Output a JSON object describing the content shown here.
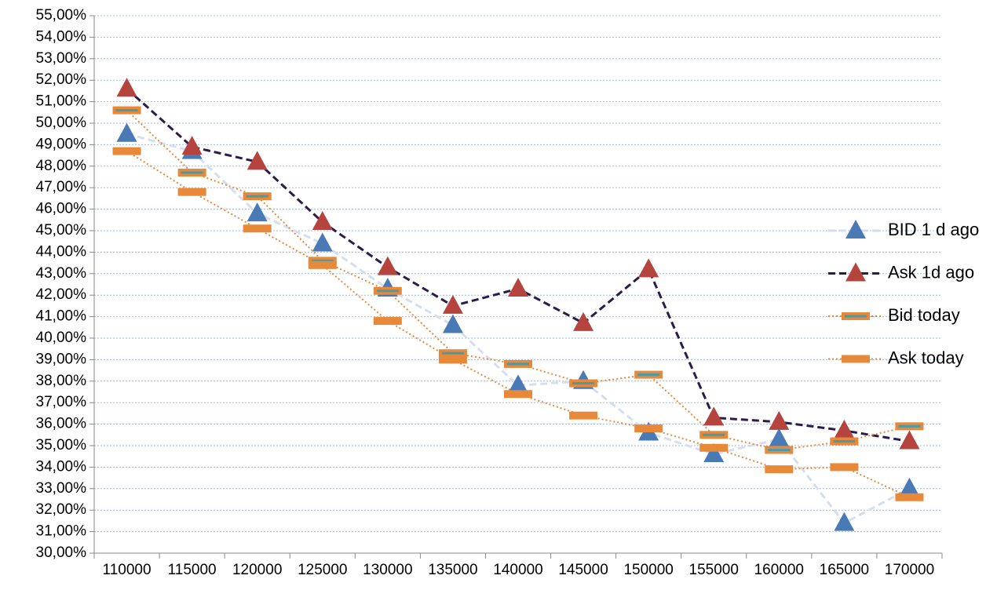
{
  "chart_data": {
    "type": "line",
    "categories": [
      "110000",
      "115000",
      "120000",
      "125000",
      "130000",
      "135000",
      "140000",
      "145000",
      "150000",
      "155000",
      "160000",
      "165000",
      "170000"
    ],
    "series": [
      {
        "name": "BID 1 d ago",
        "color": "#4a7ab5",
        "line_color": "#d4deee",
        "line_style": "dashed",
        "marker": "triangle",
        "values": [
          49.5,
          48.7,
          45.8,
          44.4,
          42.3,
          40.6,
          37.8,
          38.0,
          35.6,
          34.6,
          35.3,
          31.4,
          33.0
        ]
      },
      {
        "name": "Ask 1d ago",
        "color": "#b5443f",
        "line_color": "#2a1b4a",
        "line_style": "dashed",
        "marker": "triangle",
        "values": [
          51.6,
          48.9,
          48.2,
          45.4,
          43.3,
          41.5,
          42.3,
          40.7,
          43.2,
          36.3,
          36.1,
          35.7,
          35.2
        ]
      },
      {
        "name": "Bid today",
        "color": "#e8893a",
        "inner_color": "#4a9aa8",
        "line_color": "#e8893a",
        "line_style": "dotted",
        "marker": "dash",
        "values": [
          50.6,
          47.7,
          46.6,
          43.6,
          42.2,
          39.3,
          38.8,
          37.9,
          38.3,
          35.5,
          34.8,
          35.2,
          35.9
        ]
      },
      {
        "name": "Ask today",
        "color": "#e8893a",
        "line_color": "#e8893a",
        "line_style": "dotted",
        "marker": "dash",
        "values": [
          48.7,
          46.8,
          45.1,
          43.4,
          40.8,
          39.0,
          37.4,
          36.4,
          35.8,
          34.9,
          33.9,
          34.0,
          32.6
        ]
      }
    ],
    "ylim": [
      30,
      55
    ],
    "yticks": [
      {
        "value": 30,
        "label": "30,00%"
      },
      {
        "value": 31,
        "label": "31,00%"
      },
      {
        "value": 32,
        "label": "32,00%"
      },
      {
        "value": 33,
        "label": "33,00%"
      },
      {
        "value": 34,
        "label": "34,00%"
      },
      {
        "value": 35,
        "label": "35,00%"
      },
      {
        "value": 36,
        "label": "36,00%"
      },
      {
        "value": 37,
        "label": "37,00%"
      },
      {
        "value": 38,
        "label": "38,00%"
      },
      {
        "value": 39,
        "label": "39,00%"
      },
      {
        "value": 40,
        "label": "40,00%"
      },
      {
        "value": 41,
        "label": "41,00%"
      },
      {
        "value": 42,
        "label": "42,00%"
      },
      {
        "value": 43,
        "label": "43,00%"
      },
      {
        "value": 44,
        "label": "44,00%"
      },
      {
        "value": 45,
        "label": "45,00%"
      },
      {
        "value": 46,
        "label": "46,00%"
      },
      {
        "value": 47,
        "label": "47,00%"
      },
      {
        "value": 48,
        "label": "48,00%"
      },
      {
        "value": 49,
        "label": "49,00%"
      },
      {
        "value": 50,
        "label": "50,00%"
      },
      {
        "value": 51,
        "label": "51,00%"
      },
      {
        "value": 52,
        "label": "52,00%"
      },
      {
        "value": 53,
        "label": "53,00%"
      },
      {
        "value": 54,
        "label": "54,00%"
      },
      {
        "value": 55,
        "label": "55,00%"
      }
    ],
    "grid": true,
    "legend": "right"
  }
}
